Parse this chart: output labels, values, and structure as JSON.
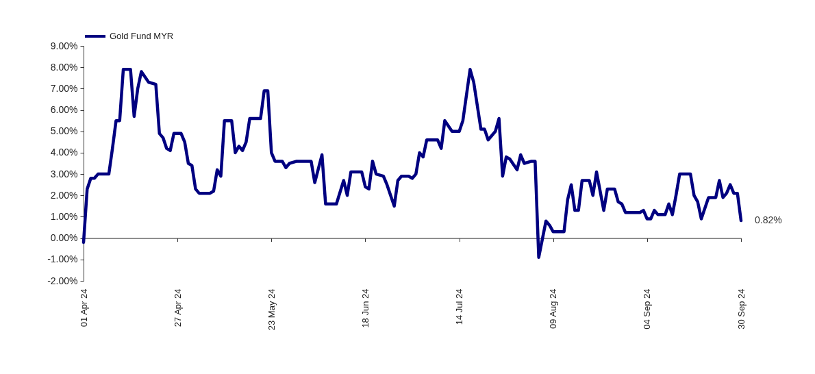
{
  "chart_data": {
    "type": "line",
    "x": [
      "2024-04-01",
      "2024-04-02",
      "2024-04-03",
      "2024-04-04",
      "2024-04-05",
      "2024-04-08",
      "2024-04-09",
      "2024-04-10",
      "2024-04-11",
      "2024-04-12",
      "2024-04-14",
      "2024-04-15",
      "2024-04-16",
      "2024-04-17",
      "2024-04-19",
      "2024-04-21",
      "2024-04-22",
      "2024-04-23",
      "2024-04-24",
      "2024-04-25",
      "2024-04-26",
      "2024-04-28",
      "2024-04-29",
      "2024-04-30",
      "2024-05-01",
      "2024-05-02",
      "2024-05-03",
      "2024-05-06",
      "2024-05-07",
      "2024-05-08",
      "2024-05-09",
      "2024-05-10",
      "2024-05-12",
      "2024-05-13",
      "2024-05-14",
      "2024-05-15",
      "2024-05-16",
      "2024-05-17",
      "2024-05-20",
      "2024-05-21",
      "2024-05-22",
      "2024-05-23",
      "2024-05-24",
      "2024-05-26",
      "2024-05-27",
      "2024-05-28",
      "2024-05-30",
      "2024-06-03",
      "2024-06-04",
      "2024-06-06",
      "2024-06-07",
      "2024-06-10",
      "2024-06-12",
      "2024-06-13",
      "2024-06-14",
      "2024-06-17",
      "2024-06-18",
      "2024-06-19",
      "2024-06-20",
      "2024-06-21",
      "2024-06-23",
      "2024-06-24",
      "2024-06-26",
      "2024-06-27",
      "2024-06-28",
      "2024-06-30",
      "2024-07-01",
      "2024-07-02",
      "2024-07-03",
      "2024-07-04",
      "2024-07-05",
      "2024-07-08",
      "2024-07-09",
      "2024-07-10",
      "2024-07-12",
      "2024-07-14",
      "2024-07-15",
      "2024-07-17",
      "2024-07-18",
      "2024-07-20",
      "2024-07-21",
      "2024-07-22",
      "2024-07-24",
      "2024-07-25",
      "2024-07-26",
      "2024-07-27",
      "2024-07-28",
      "2024-07-30",
      "2024-07-31",
      "2024-08-01",
      "2024-08-03",
      "2024-08-04",
      "2024-08-05",
      "2024-08-07",
      "2024-08-08",
      "2024-08-09",
      "2024-08-12",
      "2024-08-13",
      "2024-08-14",
      "2024-08-15",
      "2024-08-16",
      "2024-08-17",
      "2024-08-19",
      "2024-08-20",
      "2024-08-21",
      "2024-08-22",
      "2024-08-23",
      "2024-08-24",
      "2024-08-26",
      "2024-08-27",
      "2024-08-28",
      "2024-08-29",
      "2024-08-31",
      "2024-09-02",
      "2024-09-03",
      "2024-09-04",
      "2024-09-05",
      "2024-09-06",
      "2024-09-07",
      "2024-09-09",
      "2024-09-10",
      "2024-09-11",
      "2024-09-12",
      "2024-09-13",
      "2024-09-16",
      "2024-09-17",
      "2024-09-18",
      "2024-09-19",
      "2024-09-21",
      "2024-09-23",
      "2024-09-24",
      "2024-09-25",
      "2024-09-26",
      "2024-09-27",
      "2024-09-28",
      "2024-09-29",
      "2024-09-30"
    ],
    "series": [
      {
        "name": "Gold Fund MYR",
        "color": "#000080",
        "values": [
          -0.2,
          2.3,
          2.8,
          2.8,
          3.0,
          3.0,
          4.2,
          5.5,
          5.5,
          7.9,
          7.9,
          5.7,
          7.0,
          7.8,
          7.3,
          7.2,
          4.9,
          4.7,
          4.2,
          4.1,
          4.9,
          4.9,
          4.5,
          3.5,
          3.4,
          2.3,
          2.1,
          2.1,
          2.2,
          3.2,
          2.9,
          5.5,
          5.5,
          4.0,
          4.3,
          4.1,
          4.5,
          5.6,
          5.6,
          6.9,
          6.9,
          4.0,
          3.6,
          3.6,
          3.3,
          3.5,
          3.6,
          3.6,
          2.6,
          3.9,
          1.6,
          1.6,
          2.7,
          2.0,
          3.1,
          3.1,
          2.4,
          2.3,
          3.6,
          3.0,
          2.9,
          2.5,
          1.5,
          2.7,
          2.9,
          2.9,
          2.8,
          3.0,
          4.0,
          3.8,
          4.6,
          4.6,
          4.2,
          5.5,
          5.0,
          5.0,
          5.5,
          7.9,
          7.3,
          5.1,
          5.1,
          4.6,
          5.0,
          5.6,
          2.9,
          3.8,
          3.7,
          3.2,
          3.9,
          3.5,
          3.6,
          3.6,
          -0.9,
          0.8,
          0.6,
          0.3,
          0.3,
          1.8,
          2.5,
          1.3,
          1.3,
          2.7,
          2.7,
          2.0,
          3.1,
          2.2,
          1.3,
          2.3,
          2.3,
          1.7,
          1.6,
          1.2,
          1.2,
          1.2,
          1.3,
          0.9,
          0.9,
          1.3,
          1.1,
          1.1,
          1.6,
          1.1,
          2.0,
          3.0,
          3.0,
          2.0,
          1.7,
          0.9,
          1.9,
          1.9,
          2.7,
          1.9,
          2.1,
          2.5,
          2.1,
          2.1,
          0.82
        ]
      }
    ],
    "xlim": [
      "2024-04-01",
      "2024-09-30"
    ],
    "xticks": [
      {
        "value": "2024-04-01",
        "label": "01 Apr 24"
      },
      {
        "value": "2024-04-27",
        "label": "27 Apr 24"
      },
      {
        "value": "2024-05-23",
        "label": "23 May 24"
      },
      {
        "value": "2024-06-18",
        "label": "18 Jun 24"
      },
      {
        "value": "2024-07-14",
        "label": "14 Jul 24"
      },
      {
        "value": "2024-08-09",
        "label": "09 Aug 24"
      },
      {
        "value": "2024-09-04",
        "label": "04 Sep 24"
      },
      {
        "value": "2024-09-30",
        "label": "30 Sep 24"
      }
    ],
    "ylim": [
      -2,
      9
    ],
    "yticks": [
      {
        "value": -2,
        "label": "-2.00%"
      },
      {
        "value": -1,
        "label": "-1.00%"
      },
      {
        "value": 0,
        "label": "0.00%"
      },
      {
        "value": 1,
        "label": "1.00%"
      },
      {
        "value": 2,
        "label": "2.00%"
      },
      {
        "value": 3,
        "label": "3.00%"
      },
      {
        "value": 4,
        "label": "4.00%"
      },
      {
        "value": 5,
        "label": "5.00%"
      },
      {
        "value": 6,
        "label": "6.00%"
      },
      {
        "value": 7,
        "label": "7.00%"
      },
      {
        "value": 8,
        "label": "8.00%"
      },
      {
        "value": 9,
        "label": "9.00%"
      }
    ],
    "legend": "top",
    "annotations": [
      "0.82%"
    ]
  }
}
